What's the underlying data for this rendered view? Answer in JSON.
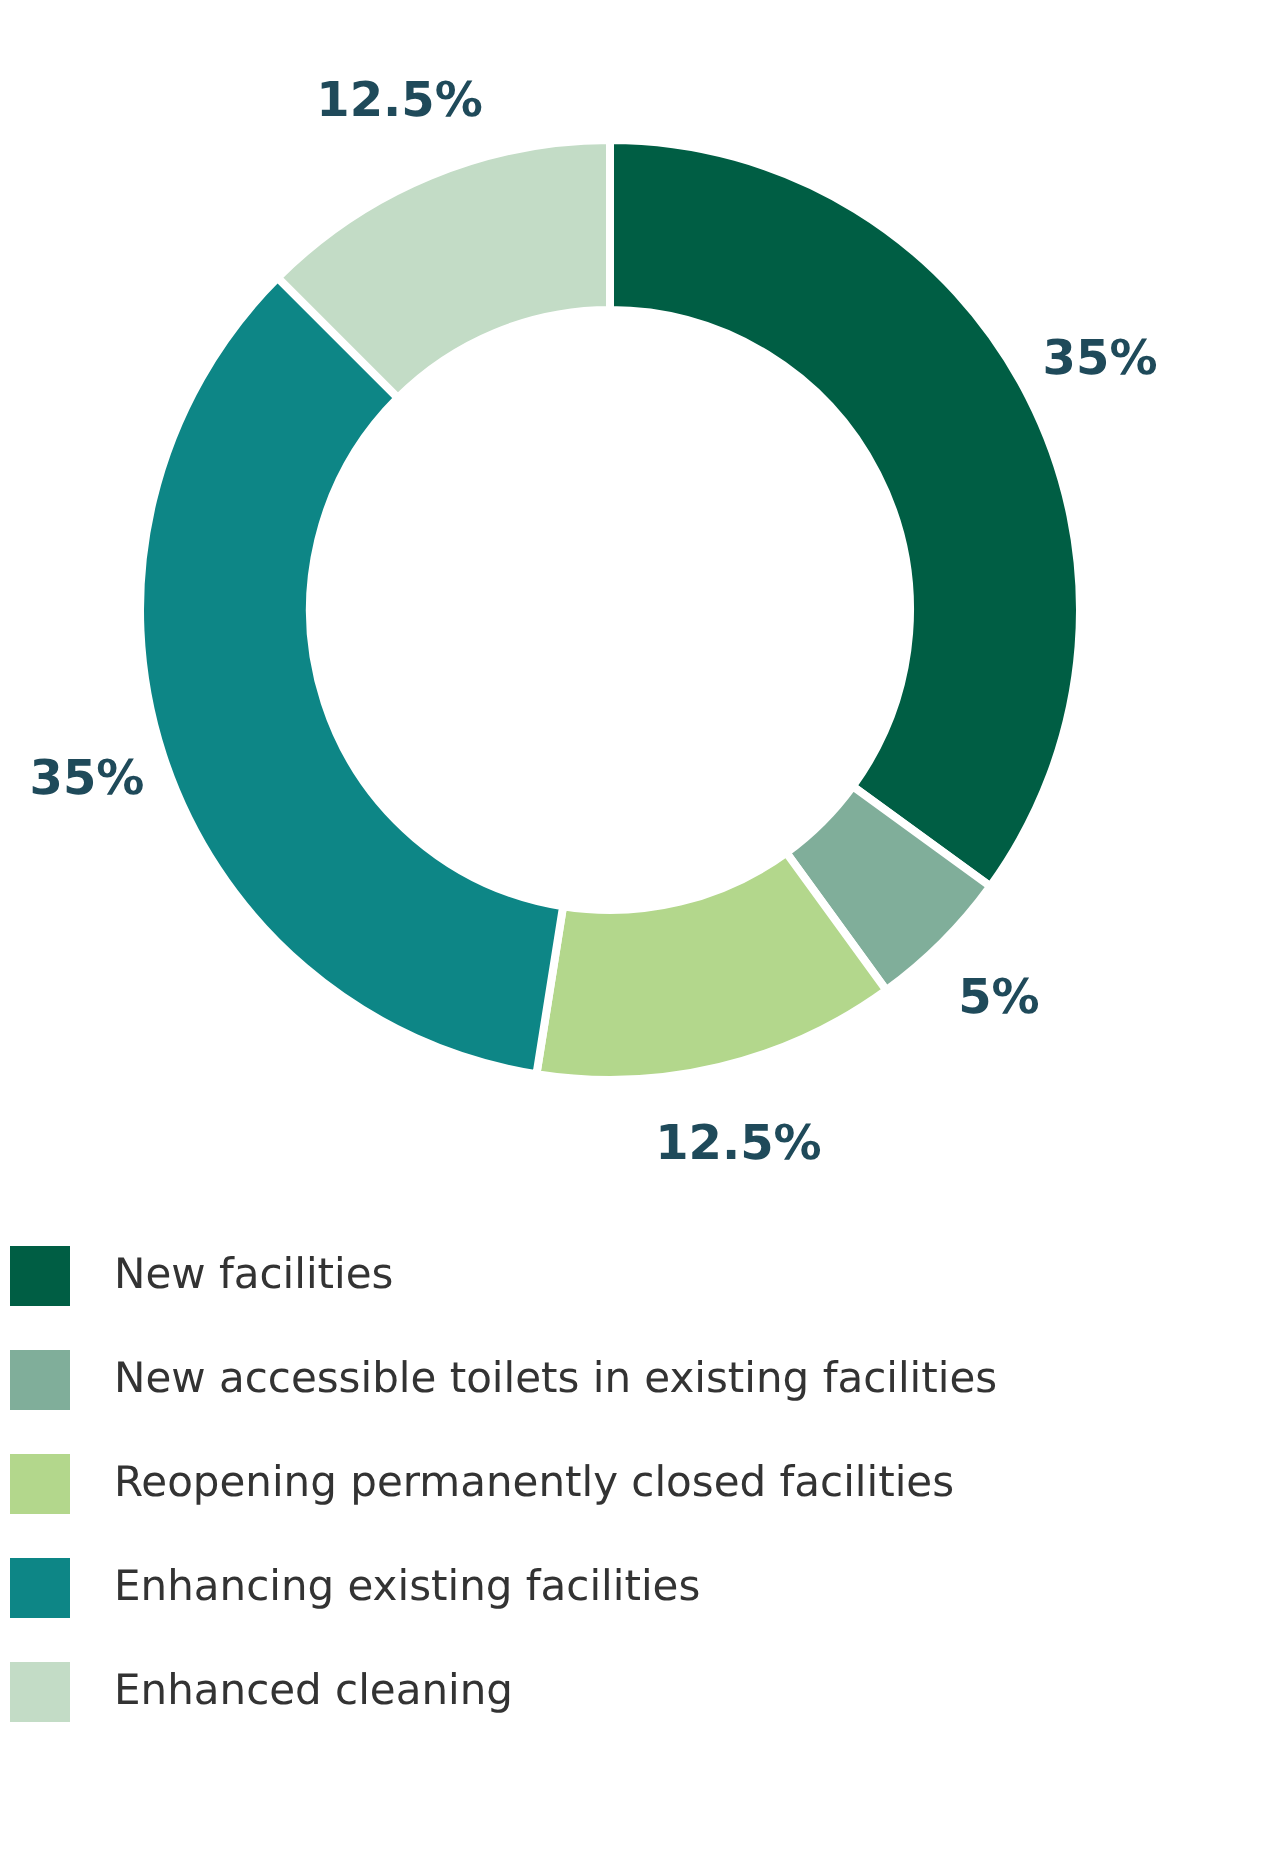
{
  "chart_data": {
    "type": "donut",
    "categories": [
      "New facilities",
      "New accessible toilets in existing facilities",
      "Reopening permanently closed facilities",
      "Enhancing existing facilities",
      "Enhanced cleaning"
    ],
    "values": [
      35,
      5,
      12.5,
      35,
      12.5
    ],
    "value_labels": [
      "35%",
      "5%",
      "12.5%",
      "35%",
      "12.5%"
    ],
    "colors": [
      "#005e44",
      "#80ae9a",
      "#b3d78c",
      "#0d8686",
      "#c3dcc6"
    ],
    "legend": "bottom left"
  }
}
